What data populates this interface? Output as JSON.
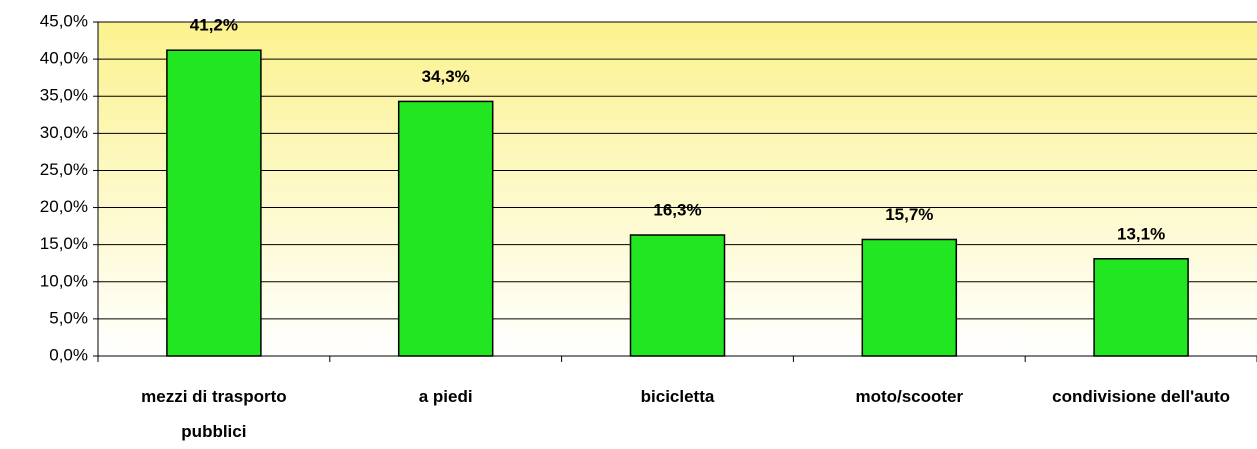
{
  "chart_data": {
    "type": "bar",
    "categories": [
      "mezzi di trasporto pubblici",
      "a piedi",
      "bicicletta",
      "moto/scooter",
      "condivisione dell'auto"
    ],
    "values": [
      41.2,
      34.3,
      16.3,
      15.7,
      13.1
    ],
    "value_labels": [
      "41,2%",
      "34,3%",
      "16,3%",
      "15,7%",
      "13,1%"
    ],
    "color": "#22e622",
    "ylim": [
      0,
      45
    ],
    "yticks": [
      {
        "value": 0,
        "label": "0,0%"
      },
      {
        "value": 5,
        "label": "5,0%"
      },
      {
        "value": 10,
        "label": "10,0%"
      },
      {
        "value": 15,
        "label": "15,0%"
      },
      {
        "value": 20,
        "label": "20,0%"
      },
      {
        "value": 25,
        "label": "25,0%"
      },
      {
        "value": 30,
        "label": "30,0%"
      },
      {
        "value": 35,
        "label": "35,0%"
      },
      {
        "value": 40,
        "label": "40,0%"
      },
      {
        "value": 45,
        "label": "45,0%"
      }
    ],
    "grid": true
  }
}
